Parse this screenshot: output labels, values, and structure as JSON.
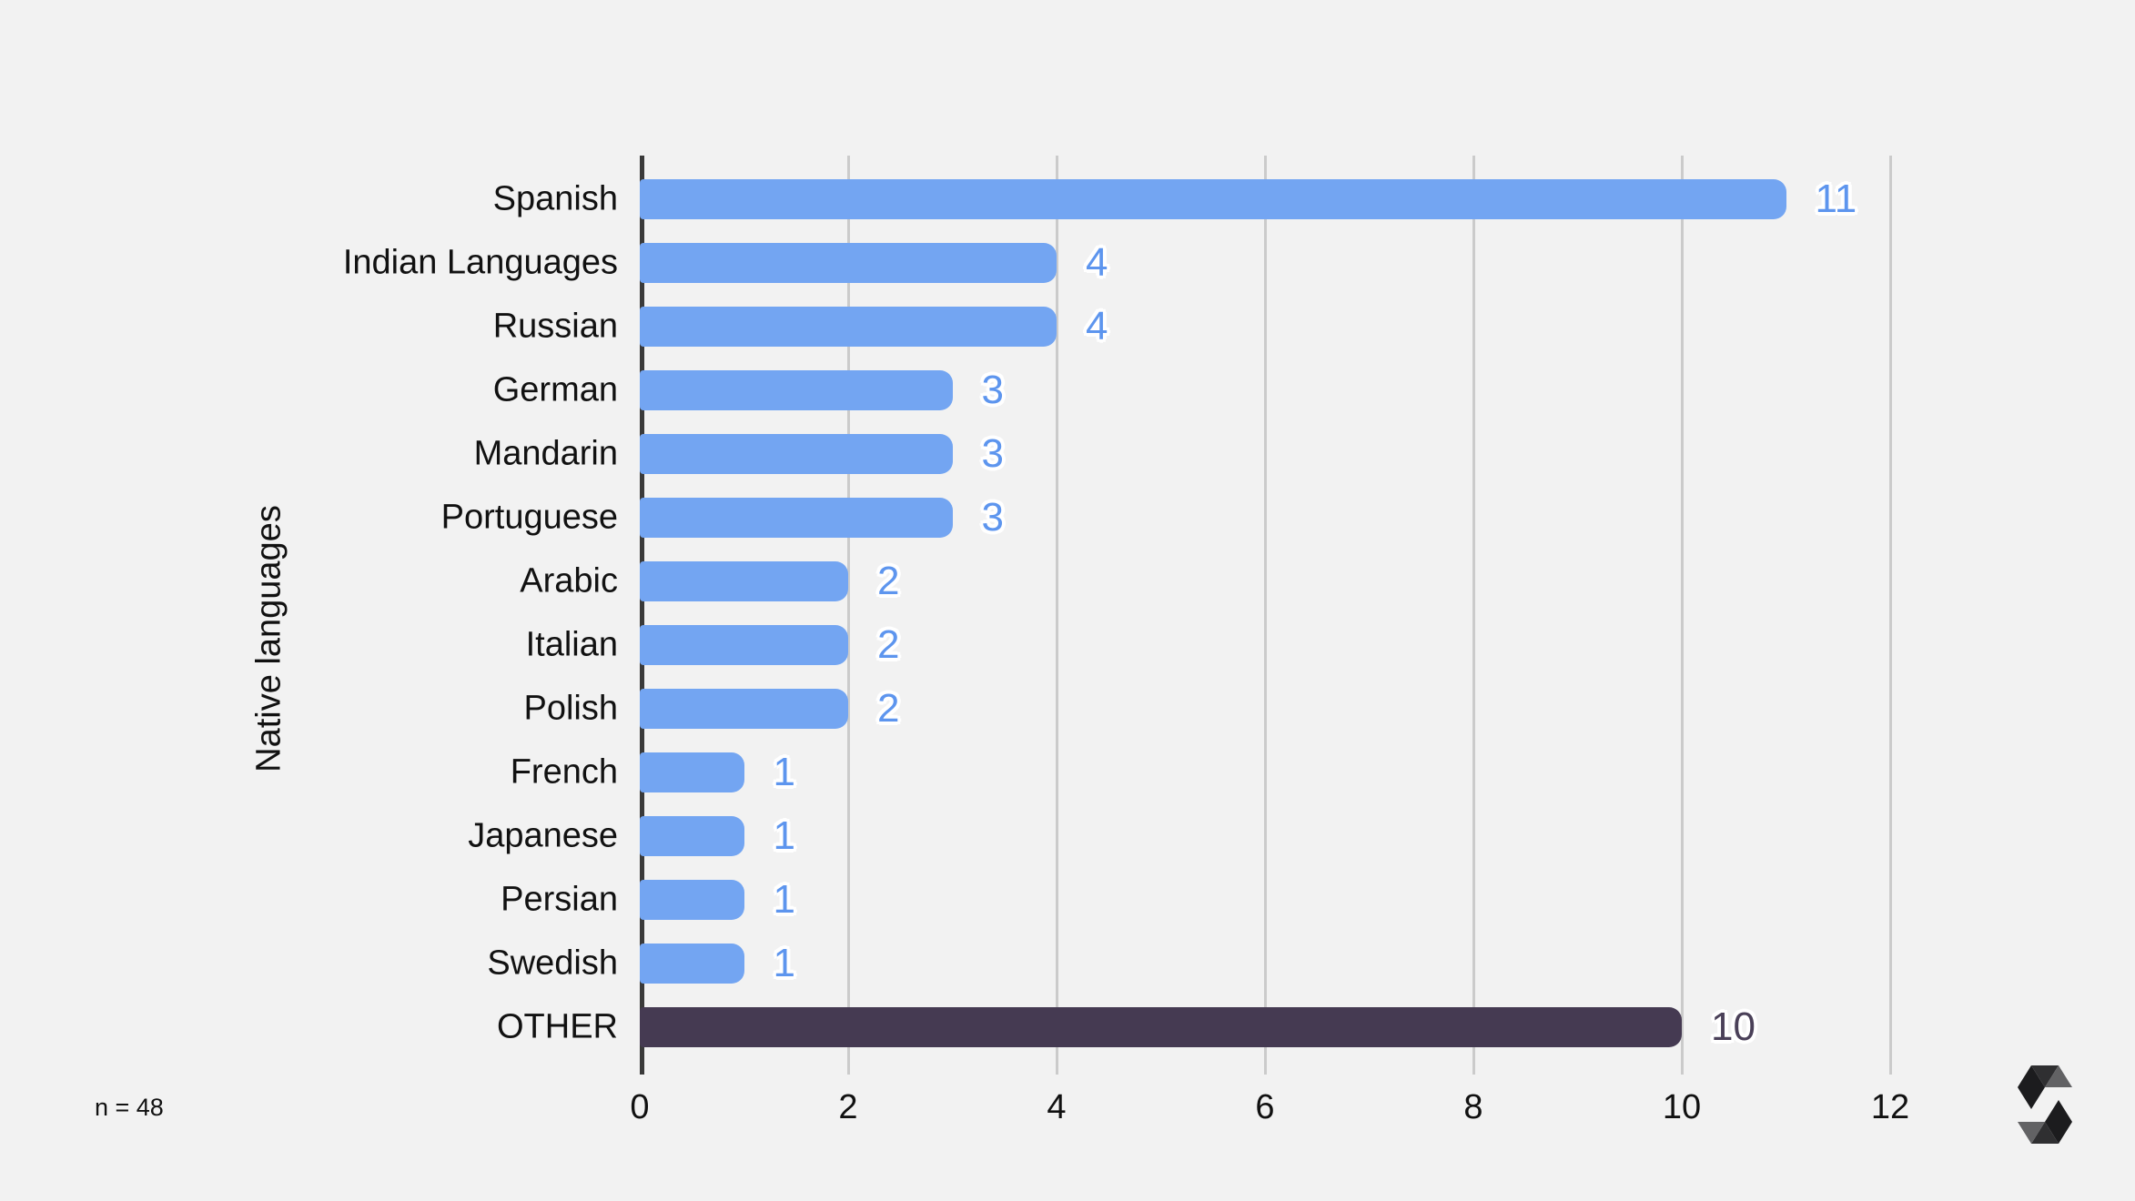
{
  "chart_data": {
    "type": "bar",
    "orientation": "horizontal",
    "title": "",
    "axis_title_y": "Native languages",
    "categories": [
      "Spanish",
      "Indian Languages",
      "Russian",
      "German",
      "Mandarin",
      "Portuguese",
      "Arabic",
      "Italian",
      "Polish",
      "French",
      "Japanese",
      "Persian",
      "Swedish",
      "OTHER"
    ],
    "values": [
      11,
      4,
      4,
      3,
      3,
      3,
      2,
      2,
      2,
      1,
      1,
      1,
      1,
      10
    ],
    "highlight_category": "OTHER",
    "xlim": [
      0,
      12
    ],
    "x_ticks": [
      0,
      2,
      4,
      6,
      8,
      10,
      12
    ],
    "grid": true,
    "legend_position": "none",
    "value_labels_shown": true
  },
  "footnote": {
    "sample_size": "n = 48"
  },
  "colors": {
    "background": "#f2f2f2",
    "bar_default": "#73a5f2",
    "bar_highlight": "#453a52",
    "value_label_default": "#5d95ee",
    "value_label_highlight": "#4a4058",
    "axis_line": "#3a3a3a",
    "gridline": "#cbcbcb",
    "text": "#111111",
    "label_halo": "#ffffff"
  },
  "logo": {
    "icon_name": "slido-s-logo",
    "facet_colors": [
      "#1c1c1e",
      "#2f2f31",
      "#626264"
    ]
  }
}
